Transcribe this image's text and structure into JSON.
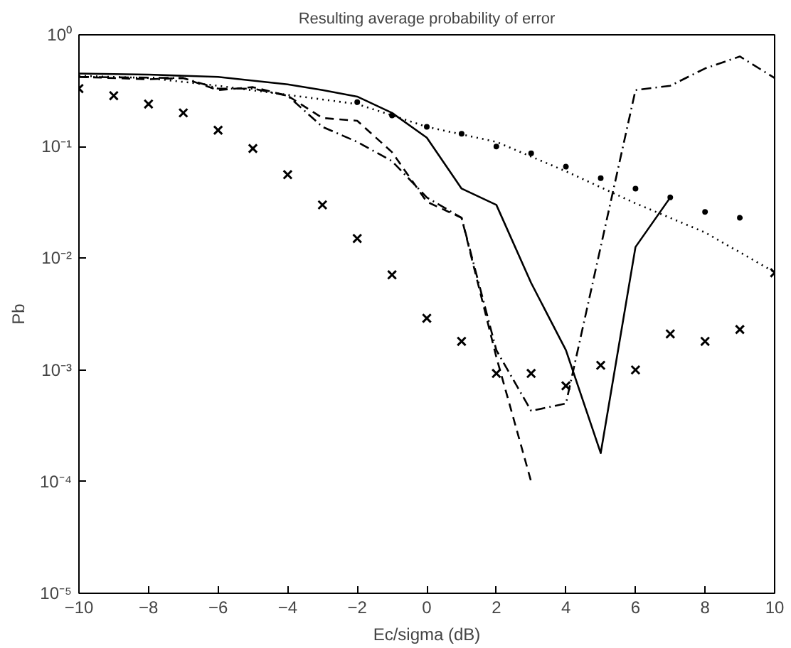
{
  "chart_data": {
    "type": "line",
    "title": "Resulting average probability of error",
    "xlabel": "Ec/sigma (dB)",
    "ylabel": "Pb",
    "log": "y",
    "grid": false,
    "xlim": [
      -10,
      10
    ],
    "xticks": [
      -10,
      -8,
      -6,
      -4,
      -2,
      0,
      2,
      4,
      6,
      8,
      10
    ],
    "ylim": [
      1e-05,
      1
    ],
    "yticks": [
      {
        "value": 1e-05,
        "label": "10⁻⁵"
      },
      {
        "value": 0.0001,
        "label": "10⁻⁴"
      },
      {
        "value": 0.001,
        "label": "10⁻³"
      },
      {
        "value": 0.01,
        "label": "10⁻²"
      },
      {
        "value": 0.1,
        "label": "10⁻¹"
      },
      {
        "value": 1,
        "label": "10⁰"
      }
    ],
    "series": [
      {
        "line_style": "solid",
        "color": "#000000",
        "x": [
          -10,
          -8,
          -6,
          -4,
          -3,
          -2,
          -1,
          0,
          1,
          2,
          3,
          4,
          5,
          6,
          7
        ],
        "values": [
          0.45,
          0.44,
          0.42,
          0.36,
          0.32,
          0.28,
          0.2,
          0.12,
          0.042,
          0.03,
          0.006,
          0.0015,
          0.00018,
          0.0126,
          0.035
        ]
      },
      {
        "line_style": "dashed",
        "color": "#000000",
        "x": [
          -10,
          -8,
          -7,
          -6,
          -5,
          -4,
          -3,
          -2,
          -1,
          0,
          1,
          2,
          3
        ],
        "values": [
          0.42,
          0.4,
          0.41,
          0.32,
          0.34,
          0.285,
          0.18,
          0.17,
          0.089,
          0.032,
          0.023,
          0.0013,
          0.0001
        ]
      },
      {
        "line_style": "dashdot",
        "color": "#000000",
        "x": [
          -10,
          -7,
          -6,
          -5,
          -4,
          -3,
          -2,
          -1,
          0,
          1,
          2,
          3,
          4,
          6,
          7,
          8,
          9,
          10
        ],
        "values": [
          0.42,
          0.41,
          0.33,
          0.33,
          0.285,
          0.15,
          0.11,
          0.074,
          0.035,
          0.023,
          0.0015,
          0.00043,
          0.0005,
          0.32,
          0.35,
          0.5,
          0.64,
          0.41
        ]
      },
      {
        "line_style": "dotted",
        "color": "#000000",
        "x": [
          -10,
          -8,
          -6,
          -4,
          -2,
          -1,
          0,
          2,
          4,
          6,
          8,
          10
        ],
        "values": [
          0.43,
          0.41,
          0.35,
          0.29,
          0.24,
          0.19,
          0.15,
          0.11,
          0.06,
          0.031,
          0.017,
          0.0075
        ]
      },
      {
        "type": "scatter",
        "marker": "circle",
        "color": "#000000",
        "x": [
          -2,
          -1,
          0,
          1,
          2,
          3,
          4,
          5,
          6,
          7,
          8,
          9
        ],
        "values": [
          0.25,
          0.19,
          0.15,
          0.13,
          0.1,
          0.087,
          0.066,
          0.052,
          0.042,
          0.035,
          0.026,
          0.023
        ]
      },
      {
        "type": "scatter",
        "marker": "cross",
        "color": "#000000",
        "x": [
          -10,
          -9,
          -8,
          -7,
          -6,
          -5,
          -4,
          -3,
          -2,
          -1,
          0,
          1,
          2,
          3,
          4,
          5,
          6,
          7,
          8,
          9,
          10
        ],
        "values": [
          0.33,
          0.285,
          0.24,
          0.2,
          0.14,
          0.096,
          0.056,
          0.03,
          0.015,
          0.0071,
          0.0029,
          0.0018,
          0.00093,
          0.00093,
          0.00072,
          0.0011,
          0.001,
          0.0021,
          0.0018,
          0.0023,
          0.0074
        ]
      }
    ]
  }
}
